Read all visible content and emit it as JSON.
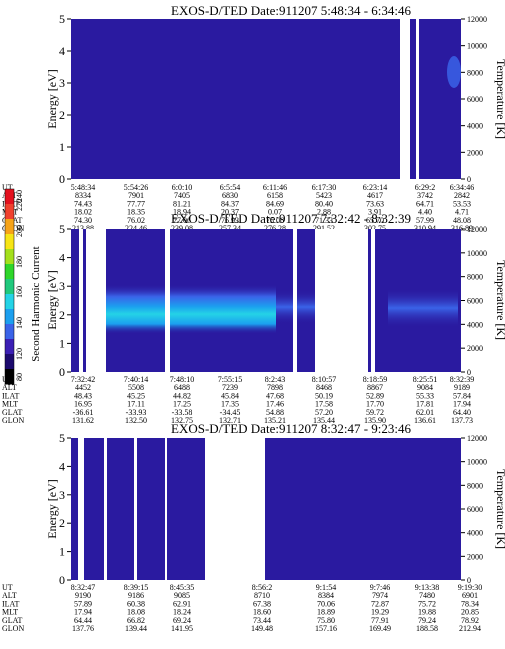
{
  "colors": {
    "bg": "#2a1aa0",
    "colorbar": [
      "#000000",
      "#1c0a6e",
      "#3b1fb4",
      "#3a63e8",
      "#1c9fef",
      "#24d3e6",
      "#20c97d",
      "#2ed62a",
      "#a4e01c",
      "#f7e516",
      "#f6a318",
      "#f0412e",
      "#e3101e"
    ]
  },
  "colorbar": {
    "label": "Second Harmonic Current",
    "ticks": [
      "80",
      "120",
      "140",
      "160",
      "180",
      "200",
      "220",
      "240"
    ]
  },
  "rows": [
    "UT",
    "ALT",
    "ILAT",
    "MLT",
    "GLAT",
    "GLON"
  ],
  "chart_data": [
    {
      "type": "heatmap",
      "title": "EXOS-D/TED   Date:911207  5:48:34 - 6:34:46",
      "ylabel": "Energy [eV]",
      "y2label": "Temperature [K]",
      "ylim": [
        0,
        5
      ],
      "y2lim": [
        0,
        12000
      ],
      "yticks": [
        "0",
        "1",
        "2",
        "3",
        "4",
        "5"
      ],
      "y2ticks": [
        "0",
        "2000",
        "4000",
        "6000",
        "8000",
        "10000",
        "12000"
      ],
      "columns": [
        [
          "5:48:34",
          "8334",
          "74.43",
          "18.02",
          "74.30",
          "213.88"
        ],
        [
          "5:54:26",
          "7901",
          "77.77",
          "18.35",
          "76.02",
          "224.46"
        ],
        [
          "6:0:10",
          "7405",
          "81.21",
          "18.94",
          "77.06",
          "239.08"
        ],
        [
          "6:5:54",
          "6830",
          "84.37",
          "20.37",
          "76.93",
          "257.34"
        ],
        [
          "6:11:46",
          "6158",
          "84.69",
          "0.07",
          "75.06",
          "276.28"
        ],
        [
          "6:17:30",
          "5423",
          "80.40",
          "2.88",
          "71.33",
          "291.52"
        ],
        [
          "6:23:14",
          "4617",
          "73.63",
          "3.91",
          "65.70",
          "302.75"
        ],
        [
          "6:29:2",
          "3742",
          "64.71",
          "4.40",
          "57.99",
          "310.94"
        ],
        [
          "6:34:46",
          "2842",
          "53.53",
          "4.71",
          "48.08",
          "316.89"
        ]
      ]
    },
    {
      "type": "heatmap",
      "title": "EXOS-D/TED   Date:911207  7:32:42 - 8:32:39",
      "ylabel": "Energy [eV]",
      "y2label": "Temperature [K]",
      "ylim": [
        0,
        5
      ],
      "y2lim": [
        0,
        12000
      ],
      "yticks": [
        "0",
        "1",
        "2",
        "3",
        "4",
        "5"
      ],
      "y2ticks": [
        "0",
        "2000",
        "4000",
        "6000",
        "8000",
        "10000",
        "12000"
      ],
      "columns": [
        [
          "7:32:42",
          "4452",
          "48.43",
          "16.95",
          "-36.61",
          "131.62"
        ],
        [
          "7:40:14",
          "5508",
          "45.25",
          "17.11",
          "-33.93",
          "132.50"
        ],
        [
          "7:48:10",
          "6488",
          "44.82",
          "17.25",
          "-33.58",
          "132.75"
        ],
        [
          "7:55:15",
          "7239",
          "45.84",
          "17.35",
          "-34.45",
          "132.71"
        ],
        [
          "8:2:43",
          "7898",
          "47.68",
          "17.46",
          "54.88",
          "135.21"
        ],
        [
          "8:10:57",
          "8468",
          "50.19",
          "17.58",
          "57.20",
          "135.44"
        ],
        [
          "8:18:59",
          "8867",
          "52.89",
          "17.70",
          "59.72",
          "135.90"
        ],
        [
          "8:25:51",
          "9084",
          "55.33",
          "17.81",
          "62.01",
          "136.61"
        ],
        [
          "8:32:39",
          "9189",
          "57.84",
          "17.94",
          "64.40",
          "137.73"
        ]
      ]
    },
    {
      "type": "heatmap",
      "title": "EXOS-D/TED   Date:911207  8:32:47 - 9:23:46",
      "ylabel": "Energy [eV]",
      "y2label": "Temperature [K]",
      "ylim": [
        0,
        5
      ],
      "y2lim": [
        0,
        12000
      ],
      "yticks": [
        "0",
        "1",
        "2",
        "3",
        "4",
        "5"
      ],
      "y2ticks": [
        "0",
        "2000",
        "4000",
        "6000",
        "8000",
        "10000",
        "12000"
      ],
      "columns": [
        [
          "8:32:47",
          "9190",
          "57.89",
          "17.94",
          "64.44",
          "137.76"
        ],
        [
          "8:39:15",
          "9186",
          "60.38",
          "18.08",
          "66.82",
          "139.44"
        ],
        [
          "8:45:35",
          "9085",
          "62.91",
          "18.24",
          "69.24",
          "141.95"
        ],
        [
          "8:56:2",
          "8710",
          "67.38",
          "18.60",
          "73.44",
          "149.48"
        ],
        [
          "9:1:54",
          "8384",
          "70.06",
          "18.89",
          "75.80",
          "157.16"
        ],
        [
          "9:7:46",
          "7974",
          "72.87",
          "19.29",
          "77.91",
          "169.49"
        ],
        [
          "9:13:38",
          "7480",
          "75.72",
          "19.88",
          "79.24",
          "188.58"
        ],
        [
          "9:19:30",
          "6901",
          "78.34",
          "20.85",
          "78.92",
          "212.94"
        ]
      ]
    }
  ]
}
